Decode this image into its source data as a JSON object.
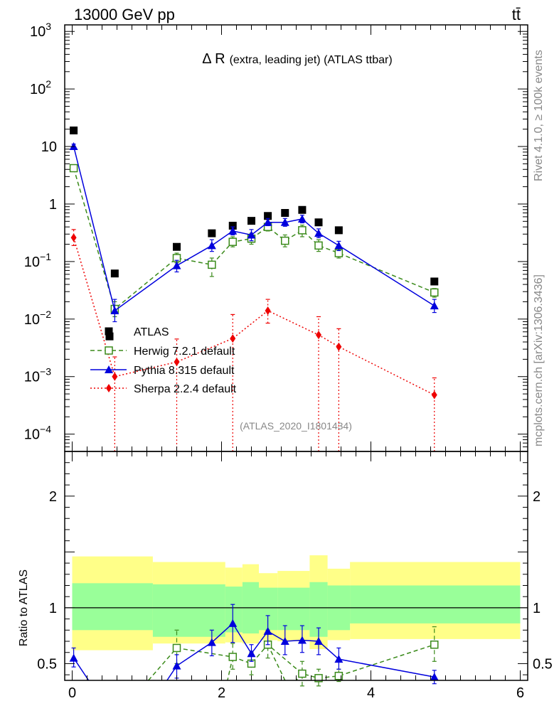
{
  "header": {
    "energy_label": "13000 GeV pp",
    "process_label": "tt̄"
  },
  "side_labels": {
    "rivet": "Rivet 4.1.0, ≥ 100k events",
    "mcplots": "mcplots.cern.ch [arXiv:1306.3436]"
  },
  "colors": {
    "atlas": "#000000",
    "herwig": "#3a8a1a",
    "pythia": "#0000dd",
    "sherpa": "#ee0000",
    "band_inner": "#99ff99",
    "band_outer": "#ffff88"
  },
  "chart_data": [
    {
      "type": "scatter",
      "title_symbol": "Δ R",
      "title_rest": "(extra, leading jet) (ATLAS ttbar)",
      "watermark": "(ATLAS_2020_I1801434)",
      "yscale": "log",
      "xlim": [
        -0.1,
        6.1
      ],
      "ylim": [
        5e-05,
        1300
      ],
      "y_tick_labels": [
        {
          "value": 1000,
          "base": "10",
          "exp": "3"
        },
        {
          "value": 100,
          "base": "10",
          "exp": "2"
        },
        {
          "value": 10,
          "base": "10",
          "exp": ""
        },
        {
          "value": 1,
          "base": "1",
          "exp": ""
        },
        {
          "value": 0.1,
          "base": "10",
          "exp": "−1"
        },
        {
          "value": 0.01,
          "base": "10",
          "exp": "−2"
        },
        {
          "value": 0.001,
          "base": "10",
          "exp": "−3"
        },
        {
          "value": 0.0001,
          "base": "10",
          "exp": "−4"
        }
      ],
      "legend_position": "lower-left",
      "series": [
        {
          "name": "ATLAS",
          "marker": "square",
          "line": "none",
          "x": [
            0.02,
            0.5,
            0.57,
            1.4,
            1.87,
            2.15,
            2.4,
            2.62,
            2.85,
            3.08,
            3.3,
            3.57,
            4.85
          ],
          "y": [
            19,
            0.005,
            0.062,
            0.18,
            0.31,
            0.42,
            0.51,
            0.62,
            0.7,
            0.79,
            0.48,
            0.35,
            0.045
          ]
        },
        {
          "name": "Herwig 7.2.1 default",
          "marker": "open-square",
          "line": "dashed",
          "x": [
            0.02,
            0.57,
            1.4,
            1.87,
            2.15,
            2.4,
            2.62,
            2.85,
            3.08,
            3.3,
            3.57,
            4.85
          ],
          "y": [
            4.2,
            0.015,
            0.115,
            0.088,
            0.22,
            0.25,
            0.4,
            0.23,
            0.35,
            0.19,
            0.14,
            0.029
          ],
          "y_lo": [
            3.7,
            0.011,
            0.095,
            0.055,
            0.18,
            0.2,
            0.34,
            0.18,
            0.27,
            0.15,
            0.115,
            0.024
          ],
          "y_hi": [
            4.8,
            0.02,
            0.14,
            0.115,
            0.27,
            0.31,
            0.47,
            0.29,
            0.43,
            0.24,
            0.17,
            0.034
          ]
        },
        {
          "name": "Pythia 8.315 default",
          "marker": "triangle",
          "line": "solid",
          "x": [
            0.02,
            0.57,
            1.4,
            1.87,
            2.15,
            2.4,
            2.62,
            2.85,
            3.08,
            3.3,
            3.57,
            4.85
          ],
          "y": [
            10,
            0.014,
            0.085,
            0.19,
            0.34,
            0.29,
            0.48,
            0.48,
            0.55,
            0.31,
            0.19,
            0.017
          ],
          "y_lo": [
            9.0,
            0.009,
            0.066,
            0.15,
            0.29,
            0.23,
            0.42,
            0.41,
            0.47,
            0.26,
            0.155,
            0.013
          ],
          "y_hi": [
            11,
            0.022,
            0.105,
            0.24,
            0.4,
            0.36,
            0.56,
            0.56,
            0.64,
            0.37,
            0.225,
            0.022
          ]
        },
        {
          "name": "Sherpa 2.2.4 default",
          "marker": "diamond",
          "line": "dotted",
          "x": [
            0.02,
            0.57,
            1.4,
            2.15,
            2.62,
            3.3,
            3.57,
            4.85
          ],
          "y": [
            0.26,
            0.001,
            0.0018,
            0.0046,
            0.014,
            0.0053,
            0.0033,
            0.00048
          ],
          "y_lo": [
            0.19,
            1e-05,
            1e-05,
            1e-05,
            0.0085,
            1e-05,
            1e-05,
            1e-05
          ],
          "y_hi": [
            0.36,
            0.0022,
            0.0045,
            0.012,
            0.022,
            0.011,
            0.0068,
            0.00095
          ]
        }
      ]
    },
    {
      "type": "scatter",
      "ylabel": "Ratio to ATLAS",
      "xlim": [
        -0.1,
        6.1
      ],
      "ylim": [
        0.35,
        2.4
      ],
      "y_tick_labels": [
        {
          "value": 2,
          "label": "2"
        },
        {
          "value": 1,
          "label": "1"
        },
        {
          "value": 0.5,
          "label": "0.5"
        }
      ],
      "x_tick_labels": [
        {
          "value": 0,
          "label": "0"
        },
        {
          "value": 2,
          "label": "2"
        },
        {
          "value": 4,
          "label": "4"
        },
        {
          "value": 6,
          "label": "6"
        }
      ],
      "reference_line": 1,
      "bands": [
        {
          "x0": 0.0,
          "x1": 1.08,
          "inner": [
            0.8,
            1.22
          ],
          "outer": [
            0.62,
            1.46
          ]
        },
        {
          "x0": 1.08,
          "x1": 2.05,
          "inner": [
            0.74,
            1.21
          ],
          "outer": [
            0.68,
            1.41
          ]
        },
        {
          "x0": 2.05,
          "x1": 2.28,
          "inner": [
            0.78,
            1.19
          ],
          "outer": [
            0.69,
            1.36
          ]
        },
        {
          "x0": 2.28,
          "x1": 2.5,
          "inner": [
            0.77,
            1.23
          ],
          "outer": [
            0.68,
            1.39
          ]
        },
        {
          "x0": 2.5,
          "x1": 2.75,
          "inner": [
            0.8,
            1.18
          ],
          "outer": [
            0.71,
            1.31
          ]
        },
        {
          "x0": 2.75,
          "x1": 3.18,
          "inner": [
            0.8,
            1.18
          ],
          "outer": [
            0.7,
            1.33
          ]
        },
        {
          "x0": 3.18,
          "x1": 3.42,
          "inner": [
            0.74,
            1.23
          ],
          "outer": [
            0.63,
            1.47
          ]
        },
        {
          "x0": 3.42,
          "x1": 3.72,
          "inner": [
            0.8,
            1.2
          ],
          "outer": [
            0.71,
            1.35
          ]
        },
        {
          "x0": 3.72,
          "x1": 6.0,
          "inner": [
            0.86,
            1.2
          ],
          "outer": [
            0.72,
            1.41
          ]
        }
      ],
      "series": [
        {
          "name": "Herwig 7.2.1 default",
          "marker": "open-square",
          "line": "dashed",
          "x": [
            1.4,
            2.15,
            2.4,
            2.62,
            3.08,
            3.3,
            3.57,
            4.85
          ],
          "y": [
            0.64,
            0.56,
            0.5,
            0.67,
            0.41,
            0.37,
            0.39,
            0.67
          ],
          "y_lo": [
            0.5,
            0.45,
            0.4,
            0.55,
            0.3,
            0.3,
            0.34,
            0.52
          ],
          "y_hi": [
            0.8,
            0.68,
            0.6,
            0.8,
            0.52,
            0.45,
            0.45,
            0.83
          ],
          "left_exit": {
            "x": 1.02,
            "y": 0.35
          },
          "mid_exits": [
            {
              "x": 2.08,
              "y": 0.35
            },
            {
              "x": 2.85,
              "y": 0.35
            },
            {
              "x": 3.0,
              "y": 0.35
            }
          ]
        },
        {
          "name": "Pythia 8.315 default",
          "marker": "triangle",
          "line": "solid",
          "x": [
            0.02,
            1.4,
            1.87,
            2.15,
            2.4,
            2.62,
            2.85,
            3.08,
            3.3,
            3.57,
            4.85
          ],
          "y": [
            0.55,
            0.48,
            0.69,
            0.86,
            0.59,
            0.79,
            0.7,
            0.71,
            0.7,
            0.54,
            0.38
          ],
          "y_lo": [
            0.47,
            0.37,
            0.57,
            0.69,
            0.52,
            0.67,
            0.58,
            0.6,
            0.58,
            0.45,
            0.32
          ],
          "y_hi": [
            0.64,
            0.58,
            0.8,
            1.03,
            0.67,
            0.93,
            0.84,
            0.84,
            0.82,
            0.64,
            0.44
          ],
          "exit_after_first": {
            "x": 0.22,
            "y": 0.35
          },
          "entry_before_second": {
            "x": 1.27,
            "y": 0.35
          }
        }
      ]
    }
  ]
}
